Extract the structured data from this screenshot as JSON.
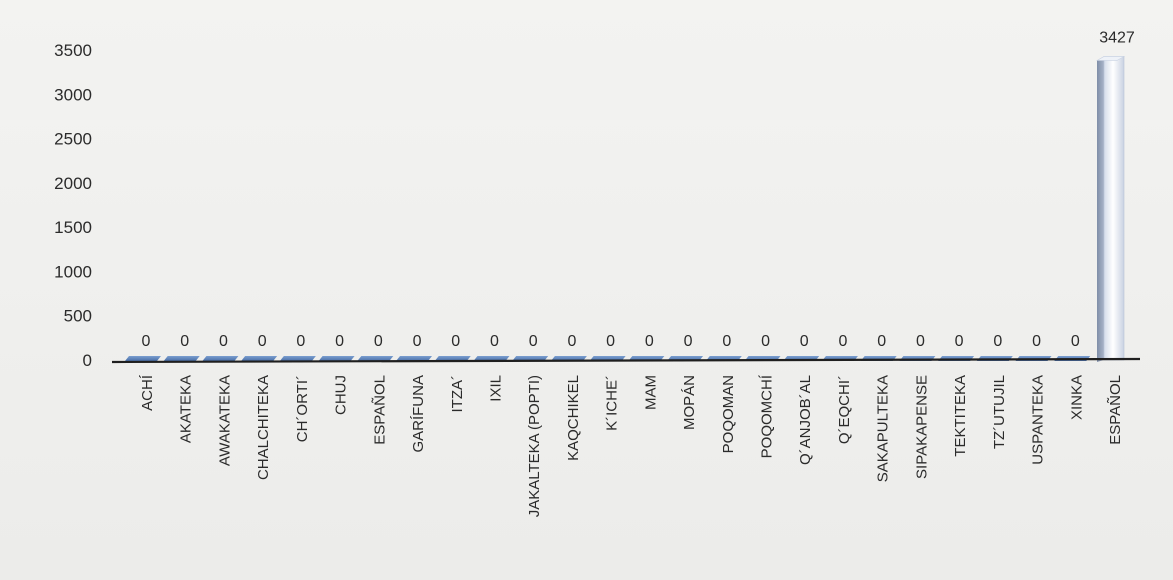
{
  "chart_data": {
    "type": "bar",
    "title": "",
    "xlabel": "",
    "ylabel": "",
    "ylim": [
      0,
      3500
    ],
    "yticks": [
      0,
      500,
      1000,
      1500,
      2000,
      2500,
      3000,
      3500
    ],
    "grid": false,
    "legend": "none",
    "categories": [
      "ACHÍ",
      "AKATEKA",
      "AWAKATEKA",
      "CHALCHITEKA",
      "CH´ORTI´",
      "CHUJ",
      "ESPAÑOL",
      "GARÍFUNA",
      "ITZA´",
      "IXIL",
      "JAKALTEKA (POPTI)",
      "KAQCHIKEL",
      "K´ICHE´",
      "MAM",
      "MOPÁN",
      "POQOMAN",
      "POQOMCHÍ",
      "Q´ANJOB´AL",
      "Q´EQCHI´",
      "SAKAPULTEKA",
      "SIPAKAPENSE",
      "TEKTITEKA",
      "TZ´UTUJIL",
      "USPANTEKA",
      "XINKA",
      "ESPAÑOL"
    ],
    "series": [
      {
        "values": [
          0,
          0,
          0,
          0,
          0,
          0,
          0,
          0,
          0,
          0,
          0,
          0,
          0,
          0,
          0,
          0,
          0,
          0,
          0,
          0,
          0,
          0,
          0,
          0,
          0,
          3427
        ]
      }
    ],
    "data_labels": [
      "0",
      "0",
      "0",
      "0",
      "0",
      "0",
      "0",
      "0",
      "0",
      "0",
      "0",
      "0",
      "0",
      "0",
      "0",
      "0",
      "0",
      "0",
      "0",
      "0",
      "0",
      "0",
      "0",
      "0",
      "0",
      "3427"
    ],
    "colors": {
      "bar_blue": "#5b84be",
      "bar_highlight": "#e4eaf3",
      "axis": "#1f1f1f",
      "text": "#2b2b2b"
    }
  }
}
